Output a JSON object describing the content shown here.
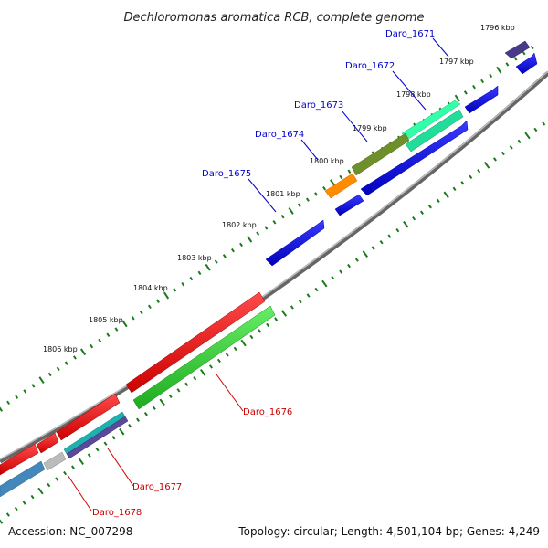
{
  "title": "Dechloromonas aromatica RCB, complete genome",
  "footer": {
    "accession": "Accession: NC_007298",
    "summary": "Topology: circular; Length: 4,501,104 bp; Genes: 4,249"
  },
  "colors": {
    "forward_label": "#0000cc",
    "reverse_label": "#cc0000",
    "tick": "#1a7a1a",
    "backbone": "#888888"
  },
  "kbp_labels": [
    "1796 kbp",
    "1797 kbp",
    "1798 kbp",
    "1799 kbp",
    "1800 kbp",
    "1801 kbp",
    "1802 kbp",
    "1803 kbp",
    "1804 kbp",
    "1805 kbp",
    "1806 kbp"
  ],
  "genes": [
    {
      "name": "Daro_1671",
      "strand": "forward",
      "color": "#0000ee"
    },
    {
      "name": "Daro_1672",
      "strand": "forward",
      "color": "#33ffaa"
    },
    {
      "name": "Daro_1673",
      "strand": "forward",
      "color": "#668822"
    },
    {
      "name": "Daro_1674",
      "strand": "forward",
      "color": "#ff8800"
    },
    {
      "name": "Daro_1675",
      "strand": "forward",
      "color": "#0000ee"
    },
    {
      "name": "Daro_1676",
      "strand": "reverse",
      "color": "#22cc22"
    },
    {
      "name": "Daro_1677",
      "strand": "reverse",
      "color": "#ee0000"
    },
    {
      "name": "Daro_1678",
      "strand": "reverse",
      "color": "#4488bb"
    }
  ]
}
